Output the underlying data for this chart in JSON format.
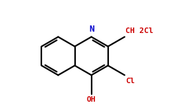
{
  "bg_color": "#ffffff",
  "bond_color": "#000000",
  "N_color": "#0000cc",
  "label_color": "#cc0000",
  "lw": 1.6,
  "CH2Cl_label": "CH 2Cl",
  "Cl_label": "Cl",
  "OH_label": "OH",
  "N_label": "N",
  "figsize": [
    2.55,
    1.63
  ],
  "dpi": 100
}
